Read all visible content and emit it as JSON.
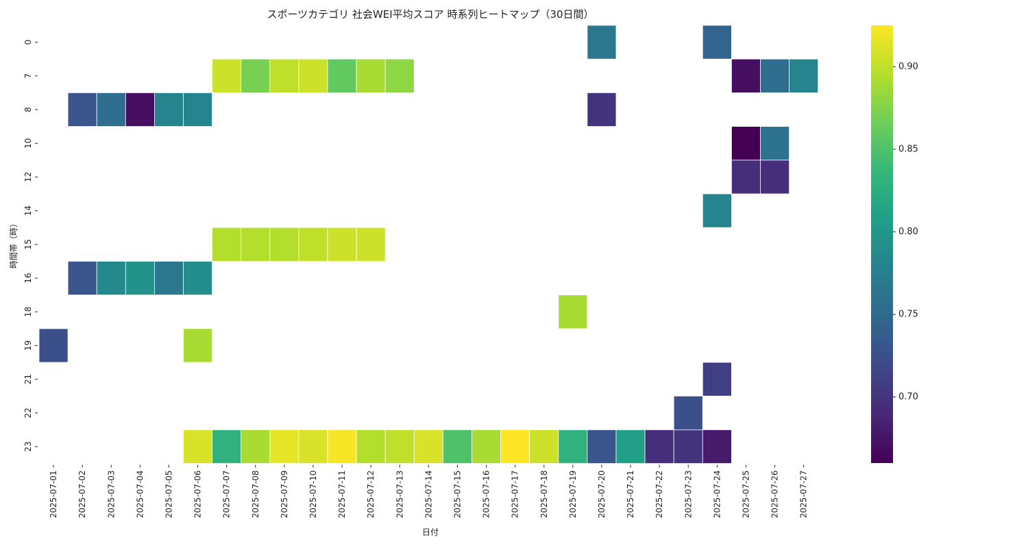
{
  "chart_data": {
    "type": "heatmap",
    "title": "スポーツカテゴリ 社会WEI平均スコア 時系列ヒートマップ（30日間）",
    "xlabel": "日付",
    "ylabel": "時間帯（時）",
    "x": [
      "2025-07-01",
      "2025-07-02",
      "2025-07-03",
      "2025-07-04",
      "2025-07-05",
      "2025-07-06",
      "2025-07-07",
      "2025-07-08",
      "2025-07-09",
      "2025-07-10",
      "2025-07-11",
      "2025-07-12",
      "2025-07-13",
      "2025-07-14",
      "2025-07-15",
      "2025-07-16",
      "2025-07-17",
      "2025-07-18",
      "2025-07-19",
      "2025-07-20",
      "2025-07-21",
      "2025-07-22",
      "2025-07-23",
      "2025-07-24",
      "2025-07-25",
      "2025-07-26",
      "2025-07-27"
    ],
    "y": [
      "0",
      "7",
      "8",
      "10",
      "12",
      "14",
      "15",
      "16",
      "18",
      "19",
      "21",
      "22",
      "23"
    ],
    "cells": [
      {
        "x": "2025-07-20",
        "y": "0",
        "v": 0.765
      },
      {
        "x": "2025-07-24",
        "y": "0",
        "v": 0.745
      },
      {
        "x": "2025-07-07",
        "y": "7",
        "v": 0.905
      },
      {
        "x": "2025-07-08",
        "y": "7",
        "v": 0.87
      },
      {
        "x": "2025-07-09",
        "y": "7",
        "v": 0.9
      },
      {
        "x": "2025-07-10",
        "y": "7",
        "v": 0.905
      },
      {
        "x": "2025-07-11",
        "y": "7",
        "v": 0.86
      },
      {
        "x": "2025-07-12",
        "y": "7",
        "v": 0.89
      },
      {
        "x": "2025-07-13",
        "y": "7",
        "v": 0.88
      },
      {
        "x": "2025-07-25",
        "y": "7",
        "v": 0.67
      },
      {
        "x": "2025-07-26",
        "y": "7",
        "v": 0.755
      },
      {
        "x": "2025-07-27",
        "y": "7",
        "v": 0.78
      },
      {
        "x": "2025-07-02",
        "y": "8",
        "v": 0.73
      },
      {
        "x": "2025-07-03",
        "y": "8",
        "v": 0.755
      },
      {
        "x": "2025-07-04",
        "y": "8",
        "v": 0.67
      },
      {
        "x": "2025-07-05",
        "y": "8",
        "v": 0.78
      },
      {
        "x": "2025-07-06",
        "y": "8",
        "v": 0.78
      },
      {
        "x": "2025-07-20",
        "y": "8",
        "v": 0.7
      },
      {
        "x": "2025-07-25",
        "y": "10",
        "v": 0.66
      },
      {
        "x": "2025-07-26",
        "y": "10",
        "v": 0.76
      },
      {
        "x": "2025-07-25",
        "y": "12",
        "v": 0.695
      },
      {
        "x": "2025-07-26",
        "y": "12",
        "v": 0.695
      },
      {
        "x": "2025-07-24",
        "y": "14",
        "v": 0.78
      },
      {
        "x": "2025-07-07",
        "y": "15",
        "v": 0.895
      },
      {
        "x": "2025-07-08",
        "y": "15",
        "v": 0.895
      },
      {
        "x": "2025-07-09",
        "y": "15",
        "v": 0.895
      },
      {
        "x": "2025-07-10",
        "y": "15",
        "v": 0.9
      },
      {
        "x": "2025-07-11",
        "y": "15",
        "v": 0.905
      },
      {
        "x": "2025-07-12",
        "y": "15",
        "v": 0.905
      },
      {
        "x": "2025-07-02",
        "y": "16",
        "v": 0.73
      },
      {
        "x": "2025-07-03",
        "y": "16",
        "v": 0.785
      },
      {
        "x": "2025-07-04",
        "y": "16",
        "v": 0.795
      },
      {
        "x": "2025-07-05",
        "y": "16",
        "v": 0.765
      },
      {
        "x": "2025-07-06",
        "y": "16",
        "v": 0.79
      },
      {
        "x": "2025-07-19",
        "y": "18",
        "v": 0.89
      },
      {
        "x": "2025-07-01",
        "y": "19",
        "v": 0.725
      },
      {
        "x": "2025-07-06",
        "y": "19",
        "v": 0.89
      },
      {
        "x": "2025-07-24",
        "y": "21",
        "v": 0.71
      },
      {
        "x": "2025-07-23",
        "y": "22",
        "v": 0.725
      },
      {
        "x": "2025-07-06",
        "y": "23",
        "v": 0.91
      },
      {
        "x": "2025-07-07",
        "y": "23",
        "v": 0.83
      },
      {
        "x": "2025-07-08",
        "y": "23",
        "v": 0.89
      },
      {
        "x": "2025-07-09",
        "y": "23",
        "v": 0.915
      },
      {
        "x": "2025-07-10",
        "y": "23",
        "v": 0.91
      },
      {
        "x": "2025-07-11",
        "y": "23",
        "v": 0.922
      },
      {
        "x": "2025-07-12",
        "y": "23",
        "v": 0.895
      },
      {
        "x": "2025-07-13",
        "y": "23",
        "v": 0.9
      },
      {
        "x": "2025-07-14",
        "y": "23",
        "v": 0.91
      },
      {
        "x": "2025-07-15",
        "y": "23",
        "v": 0.85
      },
      {
        "x": "2025-07-16",
        "y": "23",
        "v": 0.89
      },
      {
        "x": "2025-07-17",
        "y": "23",
        "v": 0.925
      },
      {
        "x": "2025-07-18",
        "y": "23",
        "v": 0.905
      },
      {
        "x": "2025-07-19",
        "y": "23",
        "v": 0.83
      },
      {
        "x": "2025-07-20",
        "y": "23",
        "v": 0.73
      },
      {
        "x": "2025-07-21",
        "y": "23",
        "v": 0.81
      },
      {
        "x": "2025-07-22",
        "y": "23",
        "v": 0.695
      },
      {
        "x": "2025-07-23",
        "y": "23",
        "v": 0.7
      },
      {
        "x": "2025-07-24",
        "y": "23",
        "v": 0.68
      }
    ],
    "colorbar": {
      "colormap": "viridis",
      "vmin": 0.66,
      "vmax": 0.925,
      "ticks": [
        0.7,
        0.75,
        0.8,
        0.85,
        0.9
      ],
      "tick_labels": [
        "0.70",
        "0.75",
        "0.80",
        "0.85",
        "0.90"
      ]
    },
    "grid": false,
    "cell_separator_color": "#ffffff",
    "colors": {
      "viridis": [
        "#440154",
        "#482878",
        "#3e4989",
        "#31688e",
        "#26828e",
        "#1f9e89",
        "#35b779",
        "#6ece58",
        "#b5de2b",
        "#fde725"
      ]
    }
  }
}
